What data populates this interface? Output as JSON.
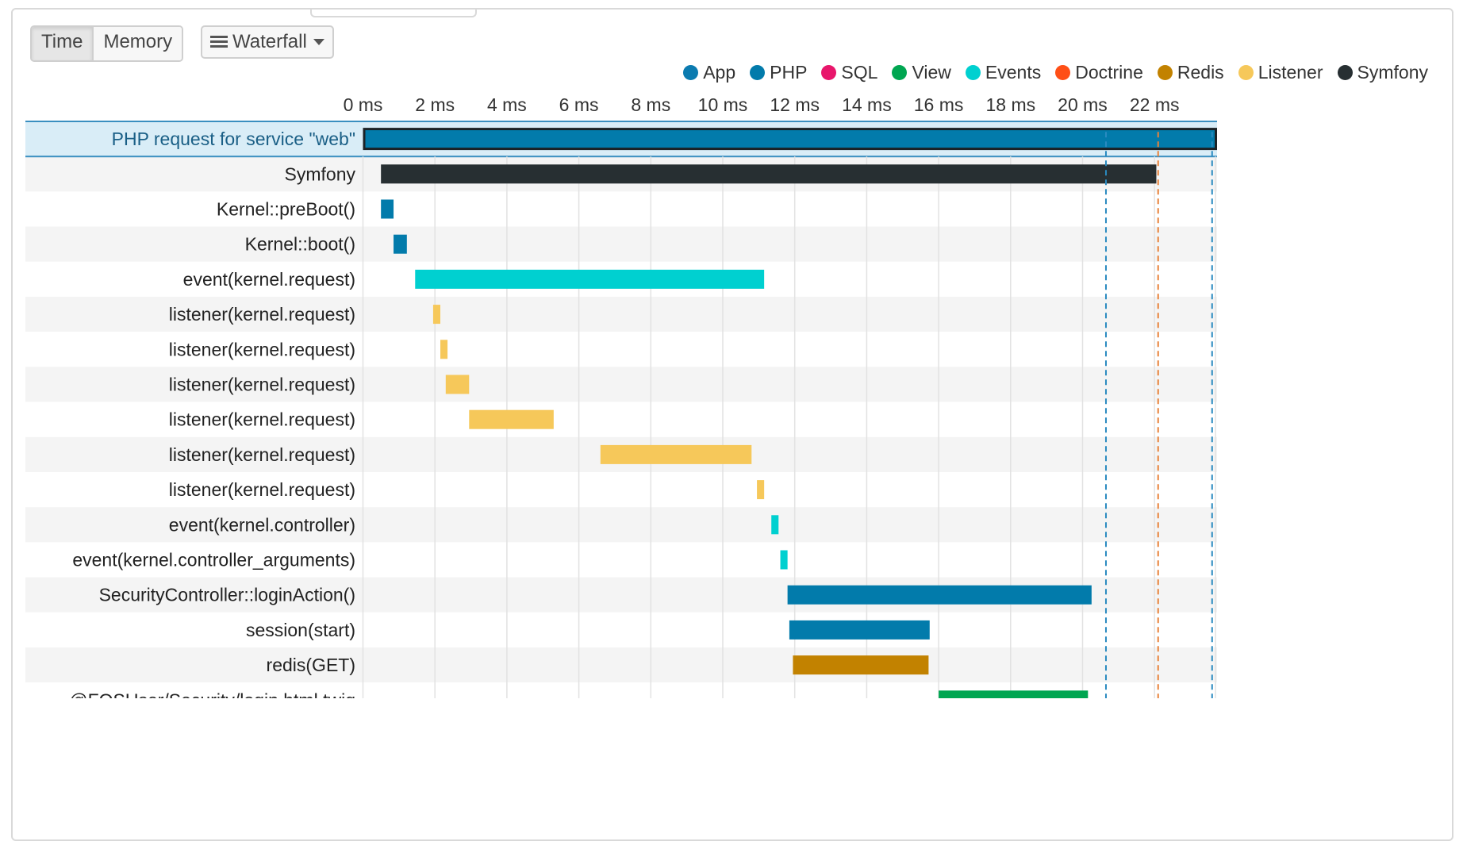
{
  "toolbar": {
    "tabs": [
      {
        "label": "Time",
        "active": true
      },
      {
        "label": "Memory",
        "active": false
      }
    ],
    "view_select": {
      "selected": "Waterfall"
    }
  },
  "legend": [
    {
      "name": "App",
      "color": "#0b7bb0"
    },
    {
      "name": "PHP",
      "color": "#027bab"
    },
    {
      "name": "SQL",
      "color": "#e8166b"
    },
    {
      "name": "View",
      "color": "#00a651"
    },
    {
      "name": "Events",
      "color": "#00d0d0"
    },
    {
      "name": "Doctrine",
      "color": "#ff4f16"
    },
    {
      "name": "Redis",
      "color": "#c28200"
    },
    {
      "name": "Listener",
      "color": "#f6c85a"
    },
    {
      "name": "Symfony",
      "color": "#272f32"
    }
  ],
  "chart_data": {
    "type": "waterfall",
    "x_unit": "ms",
    "x_ticks": [
      "0 ms",
      "2 ms",
      "4 ms",
      "6 ms",
      "8 ms",
      "10 ms",
      "12 ms",
      "14 ms",
      "16 ms",
      "18 ms",
      "20 ms",
      "22 ms"
    ],
    "xlim": [
      0,
      23.8
    ],
    "markers": [
      {
        "x": 20.65,
        "color": "#2a8ac0"
      },
      {
        "x": 22.1,
        "color": "#e8823a"
      },
      {
        "x": 23.6,
        "color": "#2a8ac0"
      }
    ],
    "rows": [
      {
        "label": "PHP request for service \"web\"",
        "start": 0.0,
        "end": 23.8,
        "category": "PHP",
        "highlight": true
      },
      {
        "label": "Symfony",
        "start": 0.5,
        "end": 22.05,
        "category": "Symfony"
      },
      {
        "label": "Kernel::preBoot()",
        "start": 0.5,
        "end": 0.85,
        "category": "PHP"
      },
      {
        "label": "Kernel::boot()",
        "start": 0.85,
        "end": 1.22,
        "category": "PHP"
      },
      {
        "label": "event(kernel.request)",
        "start": 1.45,
        "end": 11.15,
        "category": "Events"
      },
      {
        "label": "listener(kernel.request)",
        "start": 1.95,
        "end": 2.15,
        "category": "Listener"
      },
      {
        "label": "listener(kernel.request)",
        "start": 2.15,
        "end": 2.35,
        "category": "Listener"
      },
      {
        "label": "listener(kernel.request)",
        "start": 2.3,
        "end": 2.95,
        "category": "Listener"
      },
      {
        "label": "listener(kernel.request)",
        "start": 2.95,
        "end": 5.3,
        "category": "Listener"
      },
      {
        "label": "listener(kernel.request)",
        "start": 6.6,
        "end": 10.8,
        "category": "Listener"
      },
      {
        "label": "listener(kernel.request)",
        "start": 10.95,
        "end": 11.15,
        "category": "Listener"
      },
      {
        "label": "event(kernel.controller)",
        "start": 11.35,
        "end": 11.55,
        "category": "Events"
      },
      {
        "label": "event(kernel.controller_arguments)",
        "start": 11.6,
        "end": 11.8,
        "category": "Events"
      },
      {
        "label": "SecurityController::loginAction()",
        "start": 11.8,
        "end": 20.25,
        "category": "PHP"
      },
      {
        "label": "session(start)",
        "start": 11.85,
        "end": 15.75,
        "category": "PHP"
      },
      {
        "label": "redis(GET)",
        "start": 11.95,
        "end": 15.72,
        "category": "Redis"
      },
      {
        "label": "@FOSUser/Security/login.html.twig",
        "start": 16.0,
        "end": 20.15,
        "category": "View"
      }
    ]
  }
}
